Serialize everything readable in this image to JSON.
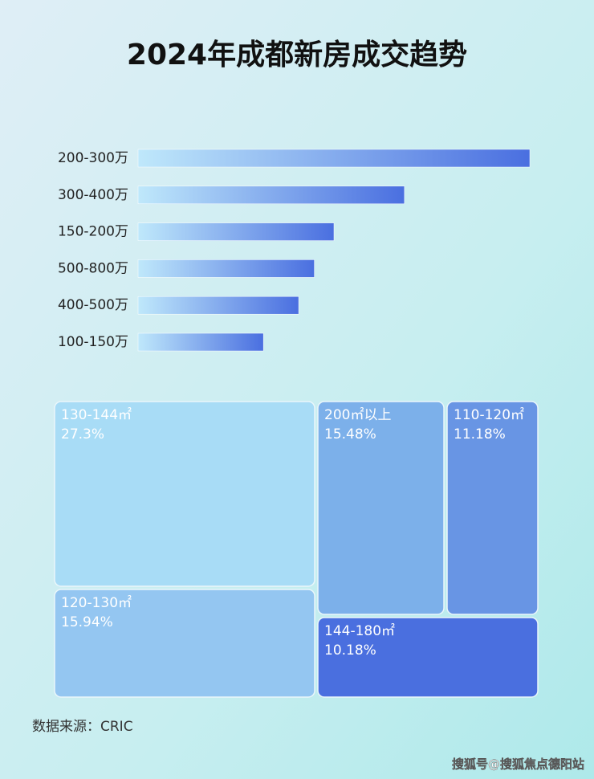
{
  "chart_data": [
    {
      "type": "bar",
      "orientation": "horizontal",
      "title": "2024年成都新房成交趋势",
      "categories": [
        "200-300万",
        "300-400万",
        "150-200万",
        "500-800万",
        "400-500万",
        "100-150万"
      ],
      "values": [
        100,
        68,
        50,
        45,
        41,
        32
      ],
      "color": "#4a6fe0"
    },
    {
      "type": "treemap",
      "categories": [
        "130-144㎡",
        "200㎡以上",
        "110-120㎡",
        "120-130㎡",
        "144-180㎡"
      ],
      "values": [
        27.3,
        15.48,
        11.18,
        15.94,
        10.18
      ],
      "value_labels": [
        "27.3%",
        "15.48%",
        "11.18%",
        "15.94%",
        "10.18%"
      ],
      "colors": [
        "#a8dcf6",
        "#7cb0ea",
        "#6895e4",
        "#94c6f1",
        "#4a6fdf"
      ]
    }
  ],
  "source": "数据来源：CRIC",
  "watermark": "搜狐号@搜狐焦点德阳站"
}
